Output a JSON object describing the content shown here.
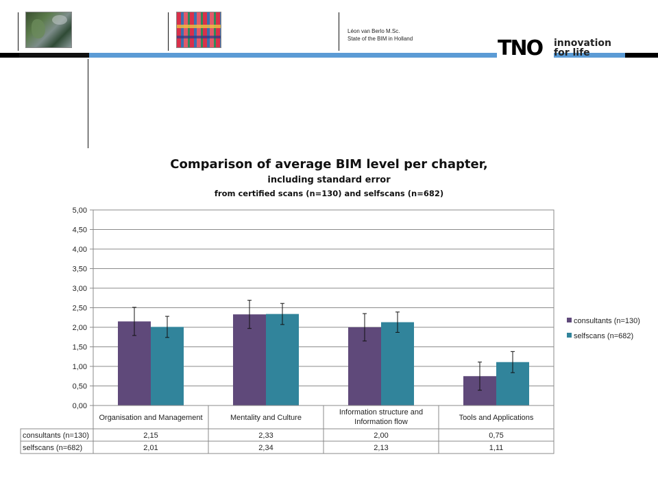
{
  "header": {
    "author": "Léon van Berlo M.Sc.",
    "subtitle": "State of the BIM in Holland",
    "logo_text": "TNO",
    "logo_tagline": [
      "innovation",
      "for life"
    ]
  },
  "colors": {
    "accent_blue": "#5b9bd5",
    "consultants": "#5f497a",
    "selfscans": "#31849b"
  },
  "chart_data": {
    "type": "bar",
    "title": "Comparison of average BIM level per chapter,",
    "subtitle": "including standard error",
    "subtitle2": "from certified scans (n=130) and selfscans (n=682)",
    "categories": [
      [
        "Organisation and Management"
      ],
      [
        "Mentality and Culture"
      ],
      [
        "Information structure and",
        "Information flow"
      ],
      [
        "Tools and Applications"
      ]
    ],
    "series": [
      {
        "name": "consultants (n=130)",
        "values": [
          2.15,
          2.33,
          2.0,
          0.75
        ],
        "errors": [
          0.36,
          0.36,
          0.35,
          0.36
        ],
        "labels": [
          "2,15",
          "2,33",
          "2,00",
          "0,75"
        ]
      },
      {
        "name": "selfscans (n=682)",
        "values": [
          2.01,
          2.34,
          2.13,
          1.11
        ],
        "errors": [
          0.27,
          0.27,
          0.26,
          0.27
        ],
        "labels": [
          "2,01",
          "2,34",
          "2,13",
          "1,11"
        ]
      }
    ],
    "ylim": [
      0,
      5
    ],
    "yticks": [
      "0,00",
      "0,50",
      "1,00",
      "1,50",
      "2,00",
      "2,50",
      "3,00",
      "3,50",
      "4,00",
      "4,50",
      "5,00"
    ],
    "grid": true,
    "legend": "right",
    "data_table": true
  }
}
